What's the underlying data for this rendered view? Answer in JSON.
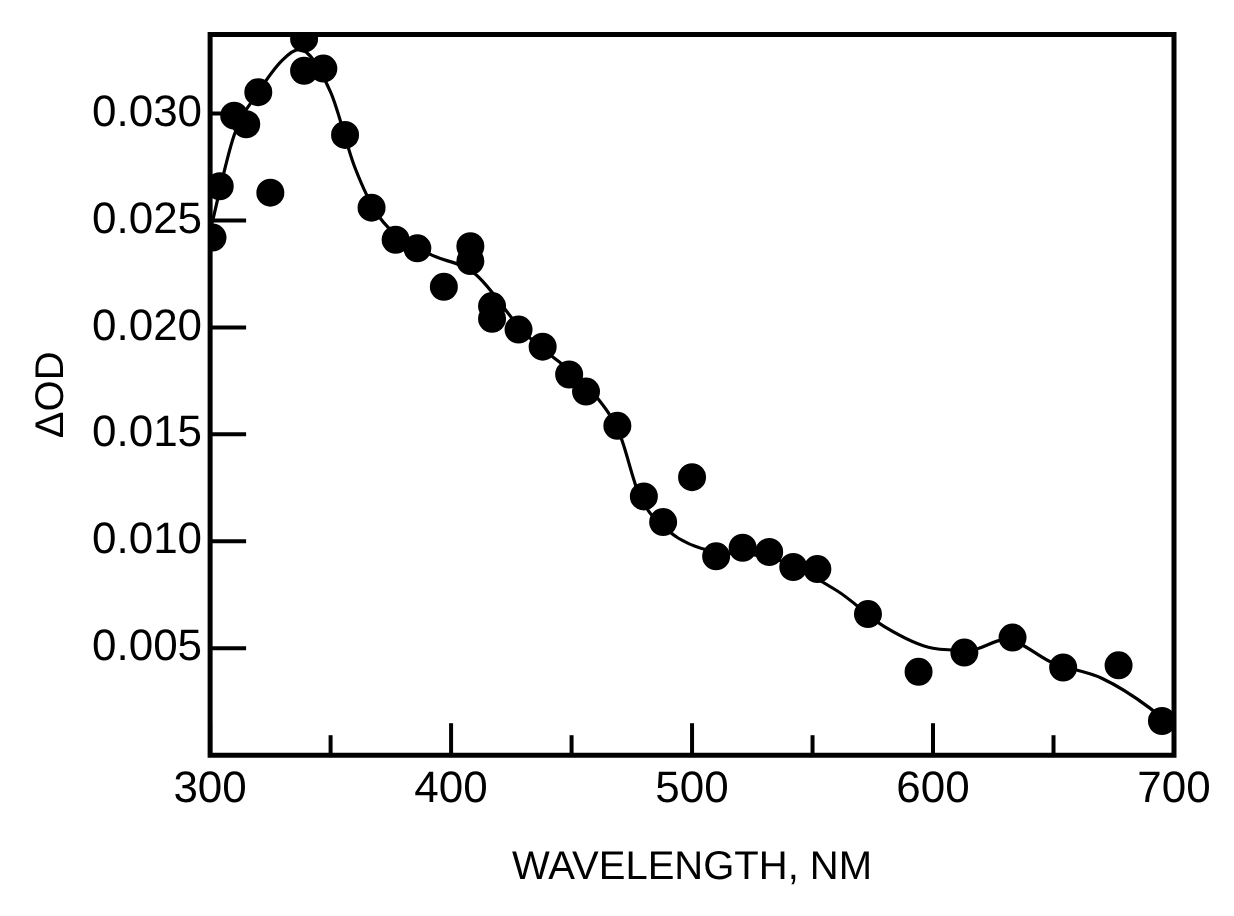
{
  "chart_data": {
    "type": "scatter",
    "xlabel": "WAVELENGTH, NM",
    "ylabel": "ΔOD",
    "xlim": [
      300,
      700
    ],
    "ylim": [
      0,
      0.0337
    ],
    "xticks": [
      300,
      {
        "value": 350,
        "label": null
      },
      400,
      {
        "value": 450,
        "label": null
      },
      500,
      {
        "value": 550,
        "label": null
      },
      600,
      {
        "value": 650,
        "label": null
      },
      700
    ],
    "yticks": [
      {
        "value": 0.005,
        "label": "0.005"
      },
      {
        "value": 0.01,
        "label": "0.010"
      },
      {
        "value": 0.015,
        "label": "0.015"
      },
      {
        "value": 0.02,
        "label": "0.020"
      },
      {
        "value": 0.025,
        "label": "0.025"
      },
      {
        "value": 0.03,
        "label": "0.030"
      }
    ],
    "grid": false,
    "legend": false,
    "marker": "circle",
    "series": [
      {
        "color": "#000000",
        "x": [
          301,
          304,
          310,
          315,
          320,
          325,
          339,
          339,
          347,
          356,
          367,
          377,
          386,
          397,
          408,
          408,
          417,
          417,
          428,
          438,
          449,
          456,
          469,
          480,
          488,
          500,
          510,
          521,
          532,
          542,
          552,
          573,
          594,
          613,
          633,
          654,
          677,
          695
        ],
        "values": [
          0.0242,
          0.0266,
          0.0299,
          0.0295,
          0.031,
          0.0263,
          0.0335,
          0.032,
          0.0321,
          0.029,
          0.0256,
          0.0241,
          0.0237,
          0.0219,
          0.0238,
          0.0231,
          0.021,
          0.0204,
          0.0199,
          0.0191,
          0.0178,
          0.017,
          0.0154,
          0.0121,
          0.0109,
          0.013,
          0.0093,
          0.0097,
          0.0095,
          0.0088,
          0.0087,
          0.0066,
          0.0039,
          0.0048,
          0.0055,
          0.0041,
          0.0042,
          0.0016
        ]
      },
      {
        "type": "line",
        "color": "#000000",
        "marker": "none",
        "x": [
          300,
          310,
          320,
          330,
          337,
          350,
          360,
          370,
          390,
          410,
          430,
          460,
          470,
          478,
          490,
          510,
          530,
          560,
          580,
          600,
          615,
          630,
          650,
          670,
          690,
          700
        ],
        "values": [
          0.0245,
          0.029,
          0.031,
          0.0325,
          0.033,
          0.031,
          0.0275,
          0.0252,
          0.0235,
          0.0225,
          0.0198,
          0.0168,
          0.015,
          0.0122,
          0.0105,
          0.0095,
          0.0093,
          0.0077,
          0.006,
          0.005,
          0.0049,
          0.0054,
          0.0043,
          0.0036,
          0.0022,
          0.0012
        ]
      }
    ]
  }
}
